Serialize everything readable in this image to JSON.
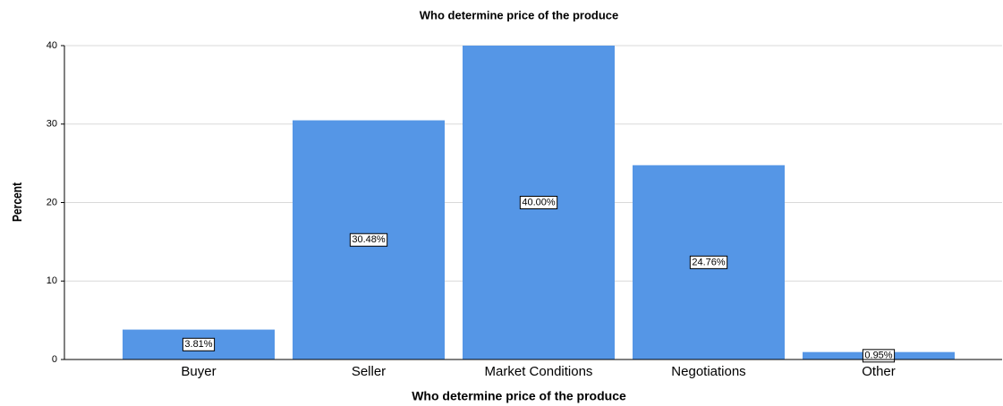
{
  "chart_data": {
    "type": "bar",
    "title": "Who determine price of the produce",
    "x_label": "Who determine price of the produce",
    "y_label": "Percent",
    "categories": [
      "Buyer",
      "Seller",
      "Market Conditions",
      "Negotiations",
      "Other"
    ],
    "values": [
      3.81,
      30.48,
      40.0,
      24.76,
      0.95
    ],
    "value_labels": [
      "3.81%",
      "30.48%",
      "40.00%",
      "24.76%",
      "0.95%"
    ],
    "color": "#5596e6",
    "ylim": [
      0,
      40
    ],
    "yticks": [
      0,
      10,
      20,
      30,
      40
    ],
    "grid": true
  }
}
